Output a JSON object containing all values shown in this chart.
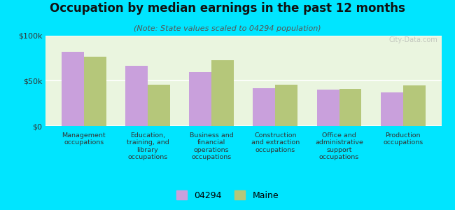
{
  "title": "Occupation by median earnings in the past 12 months",
  "subtitle": "(Note: State values scaled to 04294 population)",
  "categories": [
    "Management\noccupations",
    "Education,\ntraining, and\nlibrary\noccupations",
    "Business and\nfinancial\noperations\noccupations",
    "Construction\nand extraction\noccupations",
    "Office and\nadministrative\nsupport\noccupations",
    "Production\noccupations"
  ],
  "values_04294": [
    82000,
    67000,
    60000,
    42000,
    40000,
    37000
  ],
  "values_maine": [
    77000,
    46000,
    73000,
    46000,
    41000,
    45000
  ],
  "color_04294": "#c9a0dc",
  "color_maine": "#b5c77a",
  "background_outer": "#00e5ff",
  "background_inner": "#eaf5df",
  "ylim": [
    0,
    100000
  ],
  "yticks": [
    0,
    50000,
    100000
  ],
  "ytick_labels": [
    "$0",
    "$50k",
    "$100k"
  ],
  "legend_04294": "04294",
  "legend_maine": "Maine",
  "bar_width": 0.35,
  "title_fontsize": 12,
  "subtitle_fontsize": 8
}
